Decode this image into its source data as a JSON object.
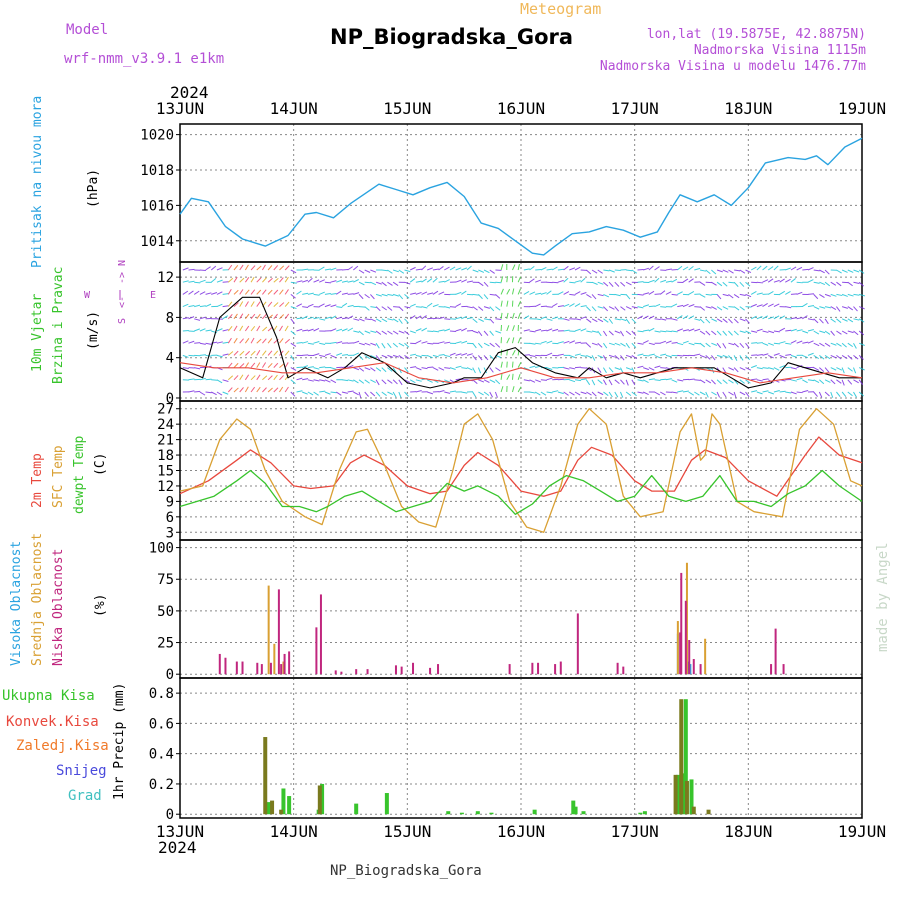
{
  "colors": {
    "purple": "#b44fd6",
    "orange": "#f0b85a",
    "blue": "#2aa3e0",
    "red": "#e8493e",
    "gold": "#d9a033",
    "green": "#38c42c",
    "magenta": "#c0267e",
    "mauve": "#b040c0",
    "olive": "#7a7a1e",
    "zal": "#f07a2a",
    "snow": "#4a4adc",
    "grad": "#40c0c0",
    "credit": "#c8d8c8",
    "grid": "#888888"
  },
  "header": {
    "model_label": "Model",
    "model_value": "wrf-nmm_v3.9.1  e1km",
    "meteogram": "Meteogram",
    "title": "NP_Biogradska_Gora",
    "lonlat": "lon,lat (19.5875E, 42.8875N)",
    "altitude": "Nadmorska Visina 1115m",
    "model_altitude": "Nadmorska Visina u modelu 1476.77m"
  },
  "footer": {
    "station": "NP_Biogradska_Gora",
    "credit": "made by Angel"
  },
  "chart_data": {
    "type": "line",
    "year": "2024",
    "x_ticks": [
      "13JUN",
      "14JUN",
      "15JUN",
      "16JUN",
      "17JUN",
      "18JUN",
      "19JUN"
    ],
    "panels": {
      "pressure": {
        "labels": [
          "Pritisak na nivou mora",
          "(hPa)"
        ],
        "yticks": [
          1014,
          1016,
          1018,
          1020
        ],
        "ylim": [
          1012.8,
          1020.6
        ],
        "series": [
          {
            "name": "Pritisak na nivou mora",
            "color": "blue",
            "x": [
              0,
              0.1,
              0.25,
              0.4,
              0.55,
              0.75,
              0.95,
              1.1,
              1.2,
              1.35,
              1.5,
              1.75,
              1.9,
              2.05,
              2.2,
              2.35,
              2.5,
              2.65,
              2.8,
              2.95,
              3.1,
              3.2,
              3.3,
              3.45,
              3.6,
              3.75,
              3.9,
              4.05,
              4.2,
              4.3,
              4.4,
              4.55,
              4.7,
              4.85,
              5.0,
              5.15,
              5.35,
              5.5,
              5.6,
              5.7,
              5.85,
              6.0
            ],
            "y": [
              1015.5,
              1016.4,
              1016.2,
              1014.8,
              1014.1,
              1013.7,
              1014.3,
              1015.5,
              1015.6,
              1015.3,
              1016.1,
              1017.2,
              1016.9,
              1016.6,
              1017.0,
              1017.3,
              1016.5,
              1015.0,
              1014.7,
              1014.0,
              1013.3,
              1013.2,
              1013.7,
              1014.4,
              1014.5,
              1014.8,
              1014.6,
              1014.2,
              1014.5,
              1015.6,
              1016.6,
              1016.2,
              1016.6,
              1016.0,
              1017.0,
              1018.4,
              1018.7,
              1018.6,
              1018.8,
              1018.3,
              1019.3,
              1019.8
            ]
          }
        ]
      },
      "wind": {
        "labels": [
          "10m Vjetar",
          "Brzina i Pravac",
          "(m/s)"
        ],
        "compass": [
          "N",
          "<-",
          "->",
          "S",
          "W",
          "E"
        ],
        "yticks": [
          0,
          4,
          8,
          12
        ],
        "ylim": [
          -0.3,
          13.5
        ],
        "series": [
          {
            "name": "Brzina",
            "color": "#000000",
            "x": [
              0,
              0.2,
              0.35,
              0.55,
              0.7,
              0.85,
              0.95,
              1.1,
              1.3,
              1.45,
              1.6,
              1.8,
              2.0,
              2.2,
              2.4,
              2.5,
              2.65,
              2.8,
              2.95,
              3.1,
              3.3,
              3.5,
              3.6,
              3.75,
              3.9,
              4.05,
              4.2,
              4.35,
              4.5,
              4.7,
              4.85,
              5.0,
              5.2,
              5.35,
              5.5,
              5.65,
              5.8,
              6.0
            ],
            "y": [
              3,
              2,
              8,
              10,
              10,
              6,
              2,
              3,
              2,
              3,
              4.5,
              3.5,
              1.5,
              1,
              1.5,
              2,
              2,
              4.5,
              5,
              3.5,
              2.5,
              2,
              3,
              2,
              2.5,
              2,
              2.5,
              3,
              3,
              3,
              2,
              1,
              1.5,
              3.5,
              3,
              2.5,
              2,
              2
            ]
          },
          {
            "name": "Udar",
            "color": "#e8493e",
            "x": [
              0,
              0.3,
              0.6,
              0.9,
              1.2,
              1.5,
              1.8,
              2.1,
              2.4,
              2.7,
              3.0,
              3.3,
              3.6,
              3.9,
              4.2,
              4.5,
              4.8,
              5.1,
              5.4,
              5.7,
              6.0
            ],
            "y": [
              3.5,
              3,
              3,
              2.5,
              2.5,
              3,
              3.5,
              2,
              1.5,
              2,
              3,
              2,
              2,
              2.5,
              2.5,
              3,
              2.5,
              1.5,
              2,
              2.5,
              2
            ]
          }
        ],
        "arrow_colors": [
          "#7b2fe0",
          "#1bc4d6",
          "#f0446a",
          "#3fd03f",
          "#f07a2a",
          "#e0b020",
          "#3a6ae8"
        ]
      },
      "temperature": {
        "labels": [
          "2m Temp",
          "SFC Temp",
          "dewpt Temp",
          "(C)"
        ],
        "yticks": [
          3,
          6,
          9,
          12,
          15,
          18,
          21,
          24,
          27
        ],
        "ylim": [
          1.5,
          28.5
        ],
        "series": [
          {
            "name": "2m Temp",
            "color": "red",
            "x": [
              0,
              0.25,
              0.5,
              0.62,
              0.8,
              1.0,
              1.15,
              1.35,
              1.5,
              1.62,
              1.8,
              2.0,
              2.2,
              2.35,
              2.5,
              2.62,
              2.8,
              3.0,
              3.2,
              3.35,
              3.5,
              3.62,
              3.8,
              4.0,
              4.15,
              4.35,
              4.5,
              4.62,
              4.8,
              5.0,
              5.25,
              5.5,
              5.62,
              5.8,
              6.0
            ],
            "y": [
              10.5,
              13,
              17,
              19,
              16.5,
              12,
              11.5,
              12,
              16.5,
              18,
              16,
              12,
              10.5,
              11,
              16,
              18.5,
              16,
              11,
              10,
              11,
              17,
              19.5,
              18,
              13,
              11,
              11,
              17,
              19,
              17.5,
              13,
              10,
              18,
              21.5,
              18,
              16.5
            ]
          },
          {
            "name": "SFC Temp",
            "color": "gold",
            "x": [
              0,
              0.2,
              0.35,
              0.5,
              0.62,
              0.75,
              0.9,
              1.1,
              1.25,
              1.4,
              1.55,
              1.65,
              1.8,
              1.95,
              2.1,
              2.25,
              2.4,
              2.5,
              2.62,
              2.75,
              2.9,
              3.05,
              3.2,
              3.35,
              3.5,
              3.6,
              3.75,
              3.9,
              4.05,
              4.25,
              4.4,
              4.5,
              4.58,
              4.62,
              4.68,
              4.75,
              4.9,
              5.05,
              5.3,
              5.45,
              5.6,
              5.75,
              5.9,
              6.0
            ],
            "y": [
              11,
              12,
              21,
              25,
              23,
              15,
              9,
              6,
              4.5,
              15,
              22.5,
              23,
              16,
              8,
              5,
              4,
              15,
              24,
              26,
              21,
              9,
              4,
              3,
              12,
              24,
              27,
              24,
              10,
              6,
              7,
              22.5,
              26,
              17,
              18,
              26,
              24,
              9,
              7,
              6,
              23,
              27,
              24,
              13,
              12
            ]
          },
          {
            "name": "dewpt Temp",
            "color": "green",
            "x": [
              0,
              0.15,
              0.3,
              0.5,
              0.62,
              0.75,
              0.9,
              1.05,
              1.2,
              1.3,
              1.45,
              1.6,
              1.75,
              1.9,
              2.05,
              2.2,
              2.35,
              2.5,
              2.62,
              2.8,
              2.95,
              3.1,
              3.25,
              3.4,
              3.55,
              3.7,
              3.85,
              4.0,
              4.15,
              4.3,
              4.45,
              4.6,
              4.75,
              4.9,
              5.05,
              5.2,
              5.35,
              5.5,
              5.65,
              5.8,
              6.0
            ],
            "y": [
              8,
              9,
              10,
              13,
              15,
              12.5,
              8,
              8,
              7,
              8,
              10,
              11,
              9,
              7,
              8,
              9,
              12.5,
              11,
              12,
              10,
              6.5,
              8.5,
              12,
              14,
              13,
              11,
              9,
              10,
              14,
              10,
              9,
              10,
              14,
              9,
              9,
              8,
              10.5,
              12,
              15,
              12,
              9
            ]
          }
        ]
      },
      "clouds": {
        "labels": [
          "Visoka Oblacnost",
          "Srednja Oblacnost",
          "Niska Oblacnost",
          "(%)"
        ],
        "yticks": [
          0,
          25,
          50,
          75,
          100
        ],
        "ylim": [
          -3,
          106
        ],
        "series": [
          {
            "name": "Visoka Oblacnost",
            "color": "blue",
            "x": [
              4.38,
              4.47,
              4.49
            ],
            "y": [
              32,
              10,
              8
            ]
          },
          {
            "name": "Srednja Oblacnost",
            "color": "gold",
            "x": [
              0.78,
              0.83,
              0.91,
              4.38,
              4.46,
              4.62
            ],
            "y": [
              70,
              24,
              10,
              42,
              88,
              28
            ]
          },
          {
            "name": "Niska Oblacnost",
            "color": "magenta",
            "x": [
              0.35,
              0.4,
              0.5,
              0.55,
              0.68,
              0.72,
              0.8,
              0.87,
              0.89,
              0.92,
              0.96,
              1.2,
              1.24,
              1.37,
              1.42,
              1.55,
              1.65,
              1.9,
              1.95,
              2.05,
              2.2,
              2.27,
              2.9,
              3.1,
              3.15,
              3.3,
              3.35,
              3.5,
              3.85,
              3.9,
              4.4,
              4.41,
              4.45,
              4.48,
              4.52,
              4.58,
              5.2,
              5.24,
              5.31
            ],
            "y": [
              16,
              13,
              10,
              10,
              9,
              8,
              9,
              67,
              8,
              16,
              18,
              37,
              63,
              3,
              2,
              4,
              4,
              7,
              6,
              9,
              5,
              8,
              8,
              9,
              9,
              8,
              10,
              48,
              9,
              6,
              33,
              80,
              58,
              27,
              12,
              8,
              8,
              36,
              8
            ]
          }
        ]
      },
      "precip": {
        "labels": [
          "Ukupna Kisa",
          "Konvek.Kisa",
          "Zaledj.Kisa",
          "Snijeg",
          "Grad",
          "1hr Precip (mm)"
        ],
        "yticks": [
          0,
          0.2,
          0.4,
          0.6,
          0.8
        ],
        "ylim": [
          -0.025,
          0.9
        ],
        "series": [
          {
            "name": "Ukupna Kisa",
            "color": "green",
            "x": [
              0.78,
              0.91,
              0.96,
              1.22,
              1.25,
              1.55,
              1.82,
              2.36,
              2.48,
              2.62,
              2.74,
              3.12,
              3.46,
              3.48,
              3.55,
              4.05,
              4.09,
              4.38,
              4.42,
              4.45,
              4.5
            ],
            "y": [
              0.08,
              0.17,
              0.12,
              0.03,
              0.2,
              0.07,
              0.14,
              0.02,
              0.01,
              0.02,
              0.01,
              0.03,
              0.09,
              0.05,
              0.02,
              0.01,
              0.02,
              0.26,
              0.27,
              0.76,
              0.23
            ]
          },
          {
            "name": "Konvek.Kisa",
            "color": "olive",
            "x": [
              0.75,
              0.81,
              0.89,
              1.23,
              4.36,
              4.41,
              4.46,
              4.52,
              4.65
            ],
            "y": [
              0.51,
              0.09,
              0.03,
              0.19,
              0.26,
              0.76,
              0.22,
              0.05,
              0.03
            ]
          }
        ]
      }
    }
  }
}
